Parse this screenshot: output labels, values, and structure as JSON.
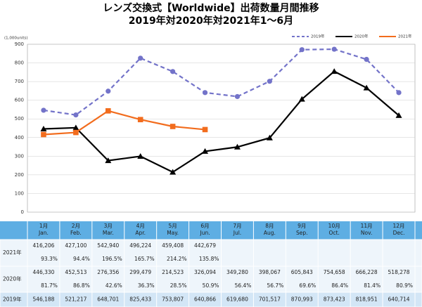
{
  "chart_data": {
    "type": "line",
    "title": "レンズ交換式【Worldwide】出荷数量月間推移",
    "subtitle": "2019年対2020年対2021年1～6月",
    "y_label": "(1,000units)",
    "ylim": [
      0,
      900
    ],
    "yticks": [
      0,
      100,
      200,
      300,
      400,
      500,
      600,
      700,
      800,
      900
    ],
    "grid": true,
    "legend": "top-right",
    "series": [
      {
        "name": "2019年",
        "color": "#7373c9",
        "marker": "circle",
        "dashed": true,
        "values": [
          546.188,
          521.217,
          648.701,
          825.433,
          753.807,
          640.866,
          619.68,
          701.517,
          870.993,
          873.423,
          818.951,
          640.714
        ]
      },
      {
        "name": "2020年",
        "color": "#000000",
        "marker": "triangle",
        "dashed": false,
        "values": [
          446.33,
          452.513,
          276.356,
          299.479,
          214.523,
          326.094,
          349.28,
          398.067,
          605.843,
          754.658,
          666.228,
          518.278
        ]
      },
      {
        "name": "2021年",
        "color": "#f26c1d",
        "marker": "square",
        "dashed": false,
        "values": [
          416.206,
          427.1,
          542.94,
          496.224,
          459.408,
          442.679
        ]
      }
    ]
  },
  "table": {
    "columns": [
      {
        "ja": "1月",
        "en": "Jan."
      },
      {
        "ja": "2月",
        "en": "Feb."
      },
      {
        "ja": "3月",
        "en": "Mar."
      },
      {
        "ja": "4月",
        "en": "Apr."
      },
      {
        "ja": "5月",
        "en": "May."
      },
      {
        "ja": "6月",
        "en": "Jun."
      },
      {
        "ja": "7月",
        "en": "Jul."
      },
      {
        "ja": "8月",
        "en": "Aug."
      },
      {
        "ja": "9月",
        "en": "Sep."
      },
      {
        "ja": "10月",
        "en": "Oct."
      },
      {
        "ja": "11月",
        "en": "Nov."
      },
      {
        "ja": "12月",
        "en": "Dec."
      }
    ],
    "rows": [
      {
        "label": "2021年",
        "values": [
          "416,206",
          "427,100",
          "542,940",
          "496,224",
          "459,408",
          "442,679"
        ],
        "ratios": [
          "93.3%",
          "94.4%",
          "196.5%",
          "165.7%",
          "214.2%",
          "135.8%"
        ]
      },
      {
        "label": "2020年",
        "values": [
          "446,330",
          "452,513",
          "276,356",
          "299,479",
          "214,523",
          "326,094",
          "349,280",
          "398,067",
          "605,843",
          "754,658",
          "666,228",
          "518,278"
        ],
        "ratios": [
          "81.7%",
          "86.8%",
          "42.6%",
          "36.3%",
          "28.5%",
          "50.9%",
          "56.4%",
          "56.7%",
          "69.6%",
          "86.4%",
          "81.4%",
          "80.9%"
        ]
      },
      {
        "label": "2019年",
        "values": [
          "546,188",
          "521,217",
          "648,701",
          "825,433",
          "753,807",
          "640,866",
          "619,680",
          "701,517",
          "870,993",
          "873,423",
          "818,951",
          "640,714"
        ]
      }
    ]
  }
}
